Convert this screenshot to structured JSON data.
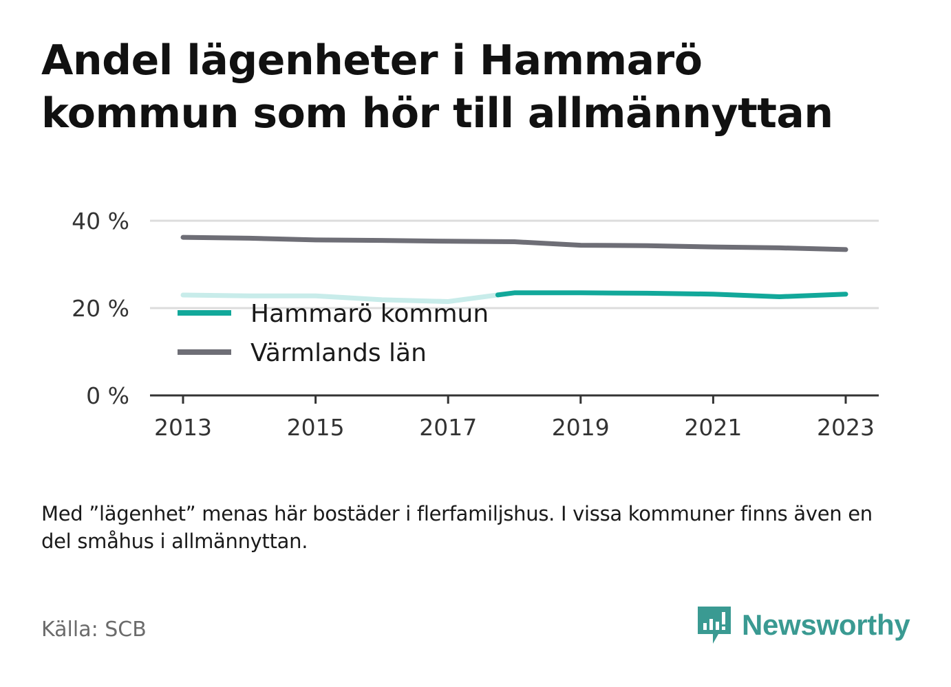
{
  "title": "Andel lägenheter i Hammarö kommun som hör till allmännyttan",
  "note": "Med ”lägenhet” menas här bostäder i flerfamiljshus. I vissa kommuner finns även en del småhus i allmännyttan.",
  "source": "Källa: SCB",
  "brand": {
    "name": "Newsworthy",
    "icon": "newsworthy-logo-icon",
    "color": "#3a9a92"
  },
  "chart_data": {
    "type": "line",
    "title": "Andel lägenheter i Hammarö kommun som hör till allmännyttan",
    "xlabel": "",
    "ylabel": "",
    "x": [
      2013,
      2014,
      2015,
      2016,
      2017,
      2018,
      2019,
      2020,
      2021,
      2022,
      2023
    ],
    "xticks": [
      "2013",
      "2015",
      "2017",
      "2019",
      "2021",
      "2023"
    ],
    "xtick_values": [
      2013,
      2015,
      2017,
      2019,
      2021,
      2023
    ],
    "yticks": [
      "0 %",
      "20 %",
      "40 %"
    ],
    "ytick_values": [
      0,
      20,
      40
    ],
    "ylim": [
      0,
      40
    ],
    "grid": true,
    "legend": "bottom-left",
    "series": [
      {
        "name": "Hammarö kommun",
        "color": "#12a89a",
        "faded_color": "#c8ecea",
        "faded_until": 2017.75,
        "values": [
          23.0,
          22.8,
          22.8,
          21.9,
          21.5,
          23.5,
          23.5,
          23.4,
          23.2,
          22.6,
          23.2
        ]
      },
      {
        "name": "Värmlands län",
        "color": "#6e6e76",
        "values": [
          36.2,
          36.0,
          35.6,
          35.5,
          35.3,
          35.2,
          34.4,
          34.3,
          34.0,
          33.8,
          33.4
        ]
      }
    ]
  }
}
